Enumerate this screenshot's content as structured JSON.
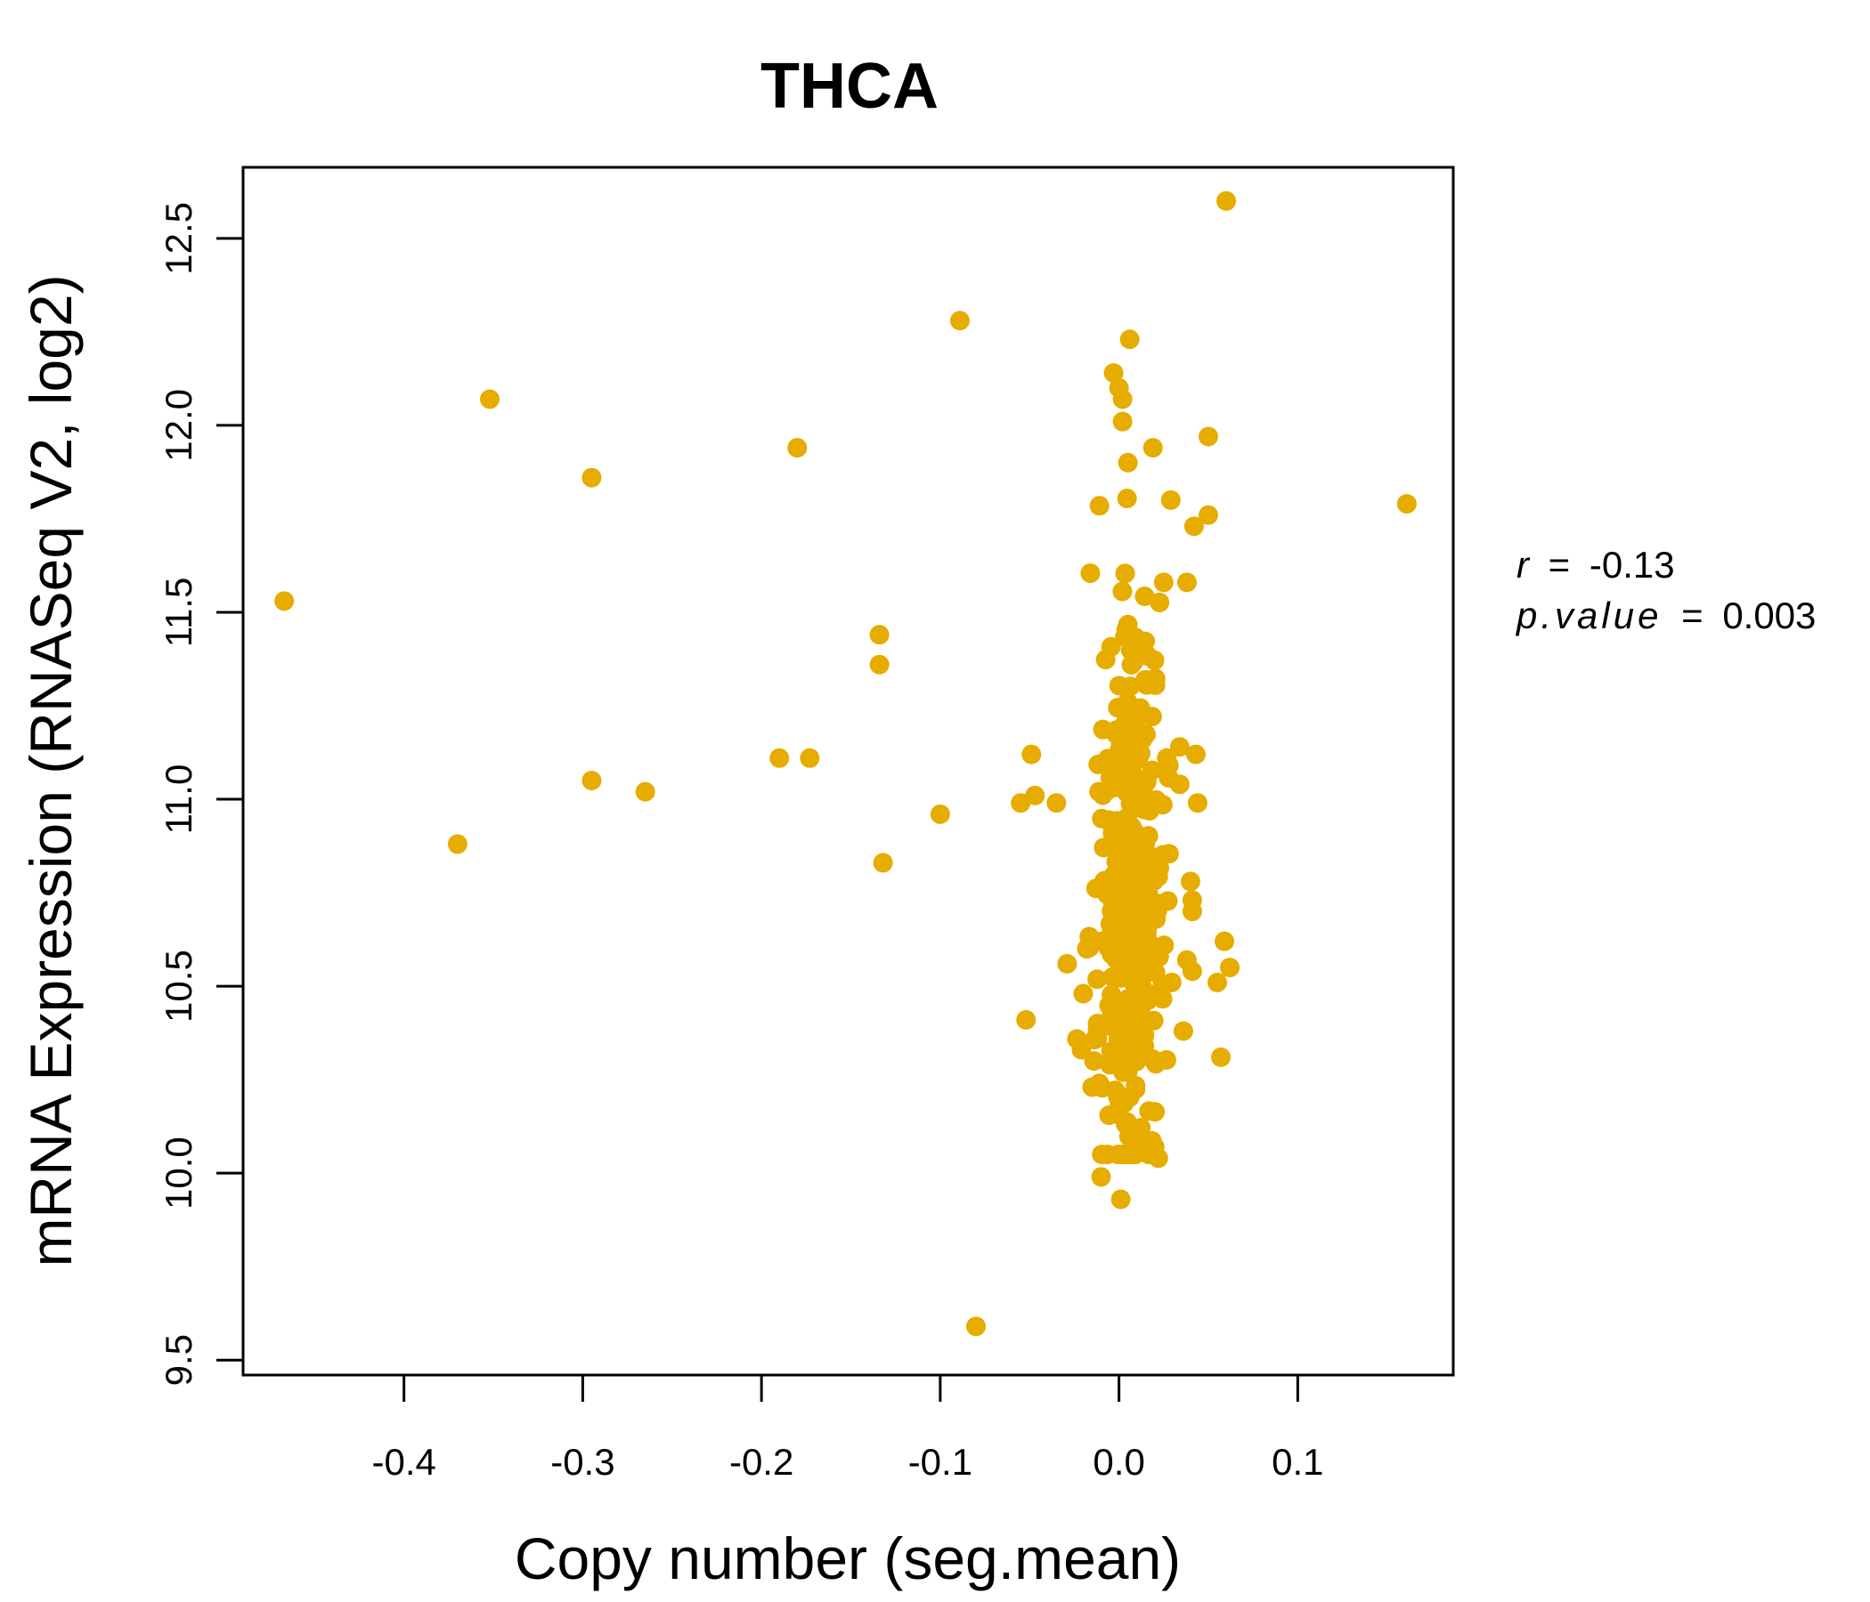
{
  "chart_data": {
    "type": "scatter",
    "title": "THCA",
    "xlabel": "Copy number (seg.mean)",
    "ylabel": "mRNA Expression (RNASeq V2, log2)",
    "xlim": [
      -0.49,
      0.187
    ],
    "ylim": [
      9.46,
      12.69
    ],
    "xticks": [
      -0.4,
      -0.3,
      -0.2,
      -0.1,
      0.0,
      0.1
    ],
    "xtick_labels": [
      "-0.4",
      "-0.3",
      "-0.2",
      "-0.1",
      "0.0",
      "0.1"
    ],
    "yticks": [
      9.5,
      10.0,
      10.5,
      11.0,
      11.5,
      12.0,
      12.5
    ],
    "ytick_labels": [
      "9.5",
      "10.0",
      "10.5",
      "11.0",
      "11.5",
      "12.0",
      "12.5"
    ],
    "point_color": "#E6AC00",
    "stats": {
      "r_label": "r",
      "r_value": "-0.13",
      "p_label": "p.value",
      "p_value": "0.003"
    },
    "outliers": [
      {
        "x": -0.467,
        "y": 11.53
      },
      {
        "x": -0.352,
        "y": 12.07
      },
      {
        "x": -0.37,
        "y": 10.88
      },
      {
        "x": -0.295,
        "y": 11.86
      },
      {
        "x": -0.295,
        "y": 11.05
      },
      {
        "x": -0.265,
        "y": 11.02
      },
      {
        "x": -0.19,
        "y": 11.11
      },
      {
        "x": -0.18,
        "y": 11.94
      },
      {
        "x": -0.173,
        "y": 11.11
      },
      {
        "x": -0.134,
        "y": 11.44
      },
      {
        "x": -0.134,
        "y": 11.36
      },
      {
        "x": -0.132,
        "y": 10.83
      },
      {
        "x": -0.1,
        "y": 10.96
      },
      {
        "x": -0.089,
        "y": 12.28
      },
      {
        "x": -0.08,
        "y": 9.59
      },
      {
        "x": -0.055,
        "y": 10.99
      },
      {
        "x": -0.052,
        "y": 10.41
      },
      {
        "x": -0.049,
        "y": 11.12
      },
      {
        "x": -0.047,
        "y": 11.01
      },
      {
        "x": -0.035,
        "y": 10.99
      },
      {
        "x": -0.029,
        "y": 10.56
      },
      {
        "x": -0.021,
        "y": 10.33
      },
      {
        "x": -0.018,
        "y": 10.6
      },
      {
        "x": -0.015,
        "y": 10.23
      },
      {
        "x": -0.014,
        "y": 10.3
      },
      {
        "x": -0.012,
        "y": 10.4
      },
      {
        "x": -0.011,
        "y": 10.24
      },
      {
        "x": -0.01,
        "y": 9.99
      },
      {
        "x": -0.02,
        "y": 10.48
      },
      {
        "x": -0.003,
        "y": 12.14
      },
      {
        "x": 0.0,
        "y": 12.1
      },
      {
        "x": 0.001,
        "y": 9.93
      },
      {
        "x": 0.002,
        "y": 12.07
      },
      {
        "x": 0.002,
        "y": 12.01
      },
      {
        "x": 0.005,
        "y": 11.9
      },
      {
        "x": 0.006,
        "y": 12.23
      },
      {
        "x": 0.008,
        "y": 10.05
      },
      {
        "x": 0.019,
        "y": 11.94
      },
      {
        "x": 0.02,
        "y": 10.07
      },
      {
        "x": 0.022,
        "y": 10.04
      },
      {
        "x": 0.025,
        "y": 11.58
      },
      {
        "x": 0.029,
        "y": 11.8
      },
      {
        "x": 0.034,
        "y": 11.14
      },
      {
        "x": 0.034,
        "y": 11.04
      },
      {
        "x": 0.036,
        "y": 10.38
      },
      {
        "x": 0.038,
        "y": 10.57
      },
      {
        "x": 0.038,
        "y": 11.58
      },
      {
        "x": 0.04,
        "y": 10.78
      },
      {
        "x": 0.041,
        "y": 10.7
      },
      {
        "x": 0.041,
        "y": 10.73
      },
      {
        "x": 0.041,
        "y": 10.54
      },
      {
        "x": 0.042,
        "y": 11.73
      },
      {
        "x": 0.043,
        "y": 11.12
      },
      {
        "x": 0.044,
        "y": 10.99
      },
      {
        "x": 0.05,
        "y": 11.97
      },
      {
        "x": 0.05,
        "y": 11.76
      },
      {
        "x": 0.055,
        "y": 10.51
      },
      {
        "x": 0.057,
        "y": 10.31
      },
      {
        "x": 0.059,
        "y": 10.62
      },
      {
        "x": 0.06,
        "y": 12.6
      },
      {
        "x": 0.062,
        "y": 10.55
      },
      {
        "x": 0.161,
        "y": 11.79
      }
    ],
    "cluster": {
      "count": 330,
      "x_center": 0.007,
      "x_spread": 0.009,
      "y_center": 10.75,
      "y_spread": 0.38,
      "y_min": 10.05,
      "y_max": 11.85
    }
  }
}
